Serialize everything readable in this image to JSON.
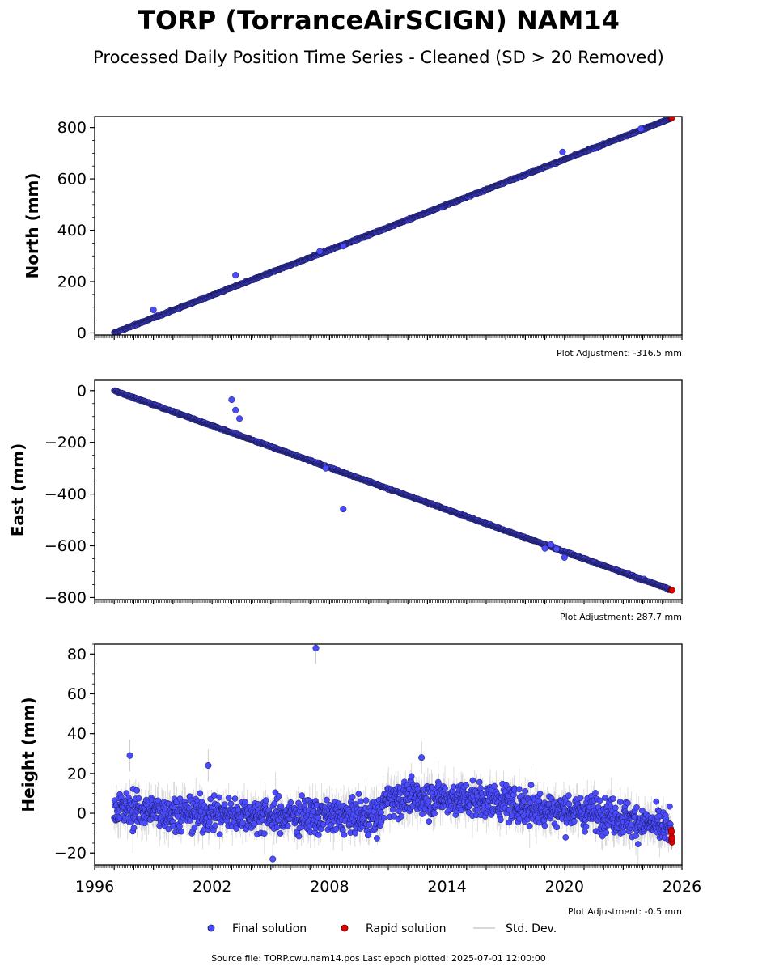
{
  "title": "TORP (TorranceAirSCIGN) NAM14",
  "subtitle": "Processed Daily Position Time Series - Cleaned (SD > 20 Removed)",
  "legend": {
    "position": "bottom-center",
    "items": [
      {
        "label": "Final solution",
        "color": "#4a4aff",
        "marker": "circle"
      },
      {
        "label": "Rapid solution",
        "color": "#e00000",
        "marker": "circle"
      },
      {
        "label": "Std. Dev.",
        "color": "#cccccc",
        "marker": "line"
      }
    ]
  },
  "footer": "Source file: TORP.cwu.nam14.pos  Last epoch plotted: 2025-07-01 12:00:00",
  "colors": {
    "final": "#4a4aff",
    "final_edge": "#1a1a55",
    "rapid": "#e00000",
    "std": "#9a9a9a"
  },
  "chart_data": [
    {
      "type": "scatter",
      "ylabel": "North (mm)",
      "adjustment": "Plot Adjustment: -316.5 mm",
      "xlim": [
        1996,
        2026
      ],
      "ylim": [
        -8,
        843
      ],
      "yticks": [
        0,
        200,
        400,
        600,
        800
      ],
      "xticks": [
        1996,
        2002,
        2008,
        2014,
        2020,
        2026
      ],
      "show_xticklabels": false,
      "series": [
        {
          "name": "Final solution",
          "kind": "linear",
          "x_start": 1997.0,
          "x_end": 2025.45,
          "y_start": 0,
          "y_end": 836,
          "noise": 2,
          "std": 3
        },
        {
          "name": "Rapid solution",
          "kind": "linear",
          "x_start": 2025.45,
          "x_end": 2025.5,
          "y_start": 836,
          "y_end": 838,
          "noise": 1,
          "std": 3
        }
      ],
      "outliers": [
        [
          2003.2,
          225
        ],
        [
          2008.7,
          338
        ],
        [
          1999.0,
          90
        ],
        [
          2007.5,
          318
        ],
        [
          2019.9,
          705
        ],
        [
          2023.9,
          795
        ]
      ]
    },
    {
      "type": "scatter",
      "ylabel": "East (mm)",
      "adjustment": "Plot Adjustment: 287.7 mm",
      "xlim": [
        1996,
        2026
      ],
      "ylim": [
        -808,
        40
      ],
      "yticks": [
        0,
        -200,
        -400,
        -600,
        -800
      ],
      "xticks": [
        1996,
        2002,
        2008,
        2014,
        2020,
        2026
      ],
      "show_xticklabels": false,
      "series": [
        {
          "name": "Final solution",
          "kind": "linear",
          "x_start": 1997.0,
          "x_end": 2025.45,
          "y_start": 0,
          "y_end": -770,
          "noise": 2,
          "std": 3
        },
        {
          "name": "Rapid solution",
          "kind": "linear",
          "x_start": 2025.45,
          "x_end": 2025.5,
          "y_start": -770,
          "y_end": -772,
          "noise": 1,
          "std": 3
        }
      ],
      "outliers": [
        [
          2003.0,
          -35
        ],
        [
          2003.2,
          -75
        ],
        [
          2003.4,
          -108
        ],
        [
          2008.7,
          -458
        ],
        [
          2019.0,
          -610
        ],
        [
          2019.3,
          -595
        ],
        [
          2019.6,
          -612
        ],
        [
          2007.8,
          -300
        ],
        [
          2020.0,
          -645
        ]
      ]
    },
    {
      "type": "scatter",
      "ylabel": "Height (mm)",
      "adjustment": "Plot Adjustment: -0.5 mm",
      "xlim": [
        1996,
        2026
      ],
      "ylim": [
        -26,
        85
      ],
      "yticks": [
        -20,
        0,
        20,
        40,
        60,
        80
      ],
      "xticks": [
        1996,
        2002,
        2008,
        2014,
        2020,
        2026
      ],
      "show_xticklabels": true,
      "series": [
        {
          "name": "Final solution",
          "kind": "segments",
          "x_start": 1997.0,
          "x_end": 2025.45,
          "segments": [
            [
              1997.0,
              2.0
            ],
            [
              2001.0,
              0.0
            ],
            [
              2005.0,
              -1.0
            ],
            [
              2010.5,
              -2.0
            ],
            [
              2011.0,
              8.0
            ],
            [
              2016.0,
              7.0
            ],
            [
              2019.0,
              2.0
            ],
            [
              2022.0,
              0.0
            ],
            [
              2025.45,
              -8.0
            ]
          ],
          "noise": 6,
          "std": 8
        },
        {
          "name": "Rapid solution",
          "kind": "segments",
          "x_start": 2025.45,
          "x_end": 2025.5,
          "segments": [
            [
              2025.45,
              -10.0
            ],
            [
              2025.5,
              -12.0
            ]
          ],
          "noise": 3,
          "std": 4
        }
      ],
      "outliers": [
        [
          2007.3,
          83
        ],
        [
          1997.8,
          29
        ],
        [
          2001.8,
          24
        ],
        [
          2012.7,
          28
        ],
        [
          2005.1,
          -23
        ]
      ]
    }
  ]
}
